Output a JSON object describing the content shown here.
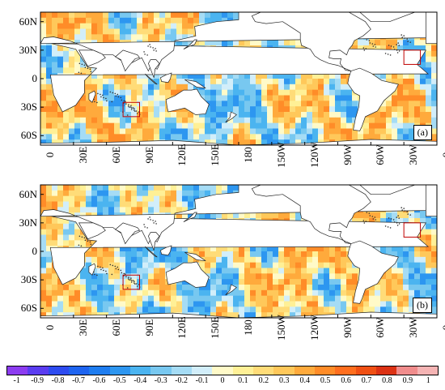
{
  "panels": [
    {
      "id": "a",
      "label": "(a)",
      "boxes": [
        [
          "30W",
          "15N",
          "15W",
          "30N"
        ],
        [
          "75E",
          "40S",
          "90E",
          "25S"
        ]
      ]
    },
    {
      "id": "b",
      "label": "(b)",
      "boxes": [
        [
          "30W",
          "15N",
          "15W",
          "30N"
        ],
        [
          "75E",
          "40S",
          "90E",
          "25S"
        ]
      ]
    }
  ],
  "lat_ticks": [
    "60N",
    "30N",
    "0",
    "30S",
    "60S"
  ],
  "lon_ticks": [
    "0",
    "30E",
    "60E",
    "90E",
    "120E",
    "150E",
    "180",
    "150W",
    "120W",
    "90W",
    "60W",
    "30W",
    "0"
  ],
  "colorbar": {
    "labels": [
      "-1",
      "-0.9",
      "-0.8",
      "-0.7",
      "-0.6",
      "-0.5",
      "-0.4",
      "-0.3",
      "-0.2",
      "-0.1",
      "0",
      "0.1",
      "0.2",
      "0.3",
      "0.4",
      "0.5",
      "0.6",
      "0.7",
      "0.8",
      "0.9",
      "1"
    ],
    "colors": [
      "#8c3cf0",
      "#5a3cf0",
      "#2d4bf0",
      "#1e64f0",
      "#1e7df0",
      "#2d96f0",
      "#4bb4f0",
      "#78c8f0",
      "#a5dcf5",
      "#d2eefa",
      "#fffac8",
      "#fff096",
      "#ffdc78",
      "#ffc85a",
      "#ffaa3c",
      "#ff8c28",
      "#ff6e1e",
      "#f05014",
      "#dc3214",
      "#f08c8c",
      "#f5b4b4"
    ]
  }
}
